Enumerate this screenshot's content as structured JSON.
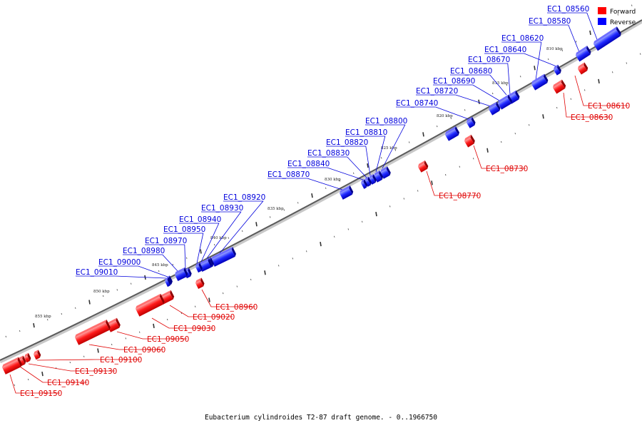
{
  "caption": "Eubacterium cylindroides T2-87 draft genome. - 0..1966750",
  "legend": {
    "forward": {
      "label": "Forward",
      "color": "#ff0000"
    },
    "reverse": {
      "label": "Reverse",
      "color": "#0000ff"
    }
  },
  "kbp_labels": [
    "810 kbp",
    "815 kbp",
    "820 kbp",
    "825 kbp",
    "830 kbp",
    "835 kbp",
    "840 kbp",
    "845 kbp",
    "850 kbp",
    "855 kbp"
  ],
  "reverse_genes": [
    "EC1_08560",
    "EC1_08580",
    "EC1_08620",
    "EC1_08640",
    "EC1_08670",
    "EC1_08680",
    "EC1_08690",
    "EC1_08720",
    "EC1_08740",
    "EC1_08800",
    "EC1_08810",
    "EC1_08820",
    "EC1_08830",
    "EC1_08840",
    "EC1_08870",
    "EC1_08920",
    "EC1_08930",
    "EC1_08940",
    "EC1_08950",
    "EC1_08970",
    "EC1_08980",
    "EC1_09000",
    "EC1_09010"
  ],
  "forward_genes": [
    "EC1_08610",
    "EC1_08630",
    "EC1_08730",
    "EC1_08770",
    "EC1_08960",
    "EC1_09020",
    "EC1_09030",
    "EC1_09050",
    "EC1_09060",
    "EC1_09100",
    "EC1_09130",
    "EC1_09140",
    "EC1_09150"
  ]
}
